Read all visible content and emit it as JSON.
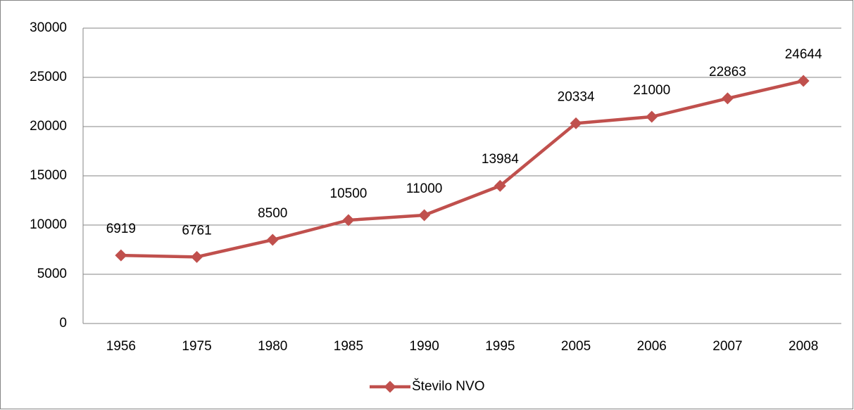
{
  "chart_data": {
    "type": "line",
    "categories": [
      "1956",
      "1975",
      "1980",
      "1985",
      "1990",
      "1995",
      "2005",
      "2006",
      "2007",
      "2008"
    ],
    "series": [
      {
        "name": "Število NVO",
        "color": "#c0504d",
        "values": [
          6919,
          6761,
          8500,
          10500,
          11000,
          13984,
          20334,
          21000,
          22863,
          24644
        ]
      }
    ],
    "ylim": [
      0,
      30000
    ],
    "yticks": [
      0,
      5000,
      10000,
      15000,
      20000,
      25000,
      30000
    ],
    "grid": true,
    "legend": "bottom",
    "data_labels": true
  }
}
